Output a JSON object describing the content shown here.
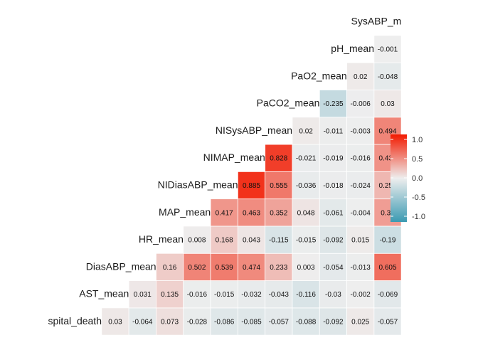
{
  "chart_data": {
    "type": "heatmap",
    "variables": [
      "spital_death",
      "AST_mean",
      "DiasABP_mean",
      "HR_mean",
      "MAP_mean",
      "NIDiasABP_mean",
      "NIMAP_mean",
      "NISysABP_mean",
      "PaCO2_mean",
      "PaO2_mean",
      "pH_mean",
      "SysABP_m"
    ],
    "rows": [
      {
        "label": "spital_death",
        "values": [
          "0.03",
          "-0.064",
          "0.073",
          "-0.028",
          "-0.086",
          "-0.085",
          "-0.057",
          "-0.088",
          "-0.092",
          "0.025",
          "-0.057"
        ]
      },
      {
        "label": "AST_mean",
        "values": [
          "0.031",
          "0.135",
          "-0.016",
          "-0.015",
          "-0.032",
          "-0.043",
          "-0.116",
          "-0.03",
          "-0.002",
          "-0.069"
        ]
      },
      {
        "label": "DiasABP_mean",
        "values": [
          "0.16",
          "0.502",
          "0.539",
          "0.474",
          "0.233",
          "0.003",
          "-0.054",
          "-0.013",
          "0.605"
        ]
      },
      {
        "label": "HR_mean",
        "values": [
          "0.008",
          "0.168",
          "0.043",
          "-0.115",
          "-0.015",
          "-0.092",
          "0.015",
          "-0.19"
        ]
      },
      {
        "label": "MAP_mean",
        "values": [
          "0.417",
          "0.463",
          "0.352",
          "0.048",
          "-0.061",
          "-0.004",
          "0.38"
        ]
      },
      {
        "label": "NIDiasABP_mean",
        "values": [
          "0.885",
          "0.555",
          "-0.036",
          "-0.018",
          "-0.024",
          "0.258"
        ]
      },
      {
        "label": "NIMAP_mean",
        "values": [
          "0.828",
          "-0.021",
          "-0.019",
          "-0.016",
          "0.434"
        ]
      },
      {
        "label": "NISysABP_mean",
        "values": [
          "0.02",
          "-0.011",
          "-0.003",
          "0.494"
        ]
      },
      {
        "label": "PaCO2_mean",
        "values": [
          "-0.235",
          "-0.006",
          "0.03"
        ]
      },
      {
        "label": "PaO2_mean",
        "values": [
          "0.02",
          "-0.048"
        ]
      },
      {
        "label": "pH_mean",
        "values": [
          "-0.001"
        ]
      },
      {
        "label": "SysABP_m",
        "values": []
      }
    ],
    "legend": {
      "ticks": [
        "1.0",
        "0.5",
        "0.0",
        "-0.5",
        "-1.0"
      ],
      "range": [
        -1,
        1
      ],
      "colors": {
        "low": "#3B9AB2",
        "mid": "#EEEEEE",
        "high": "#F21A00"
      }
    }
  }
}
